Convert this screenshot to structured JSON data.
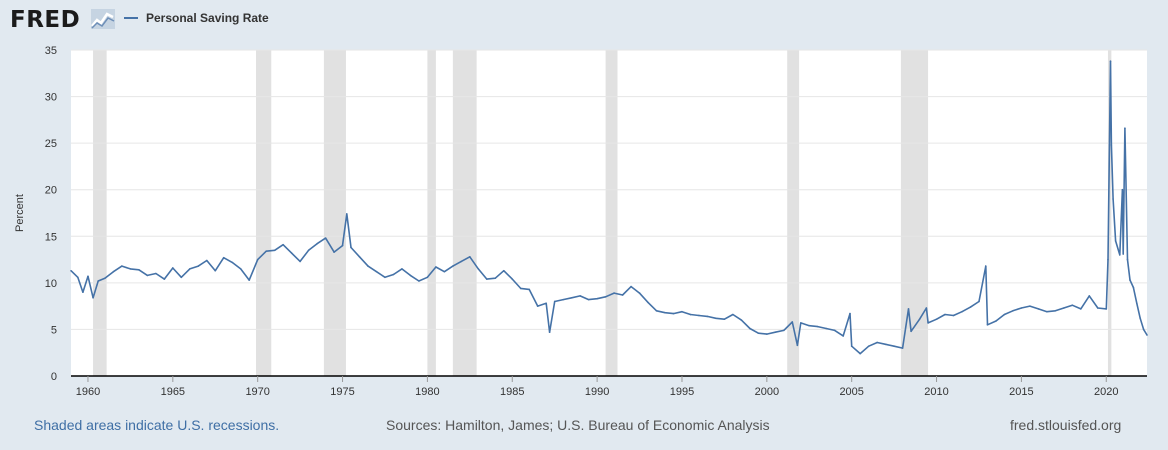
{
  "header": {
    "logo_text": "FRED",
    "logo_icon": "line-chart-icon",
    "legend_label": "Personal Saving Rate"
  },
  "colors": {
    "series": "#4572a7",
    "recession": "#e1e1e1",
    "background": "#e1e9f0",
    "plot": "#ffffff",
    "link": "#3f6fa5"
  },
  "footer": {
    "recession_note": "Shaded areas indicate U.S. recessions.",
    "sources": "Sources: Hamilton, James; U.S. Bureau of Economic Analysis",
    "site": "fred.stlouisfed.org"
  },
  "chart_data": {
    "type": "line",
    "title": "Personal Saving Rate",
    "xlabel": "",
    "ylabel": "Percent",
    "xlim": [
      1959.0,
      2022.4
    ],
    "ylim": [
      0,
      35
    ],
    "grid": true,
    "x_ticks": [
      1960,
      1965,
      1970,
      1975,
      1980,
      1985,
      1990,
      1995,
      2000,
      2005,
      2010,
      2015,
      2020
    ],
    "y_ticks": [
      0,
      5,
      10,
      15,
      20,
      25,
      30,
      35
    ],
    "recessions": [
      [
        1960.3,
        1961.1
      ],
      [
        1969.9,
        1970.8
      ],
      [
        1973.9,
        1975.2
      ],
      [
        1980.0,
        1980.5
      ],
      [
        1981.5,
        1982.9
      ],
      [
        1990.5,
        1991.2
      ],
      [
        2001.2,
        2001.9
      ],
      [
        2007.9,
        2009.5
      ],
      [
        2020.1,
        2020.3
      ]
    ],
    "series": [
      {
        "name": "Personal Saving Rate",
        "points": [
          [
            1959.0,
            11.3
          ],
          [
            1959.4,
            10.6
          ],
          [
            1959.7,
            9.0
          ],
          [
            1960.0,
            10.7
          ],
          [
            1960.3,
            8.4
          ],
          [
            1960.6,
            10.2
          ],
          [
            1961.0,
            10.5
          ],
          [
            1961.5,
            11.2
          ],
          [
            1962.0,
            11.8
          ],
          [
            1962.5,
            11.5
          ],
          [
            1963.0,
            11.4
          ],
          [
            1963.5,
            10.8
          ],
          [
            1964.0,
            11.0
          ],
          [
            1964.5,
            10.4
          ],
          [
            1965.0,
            11.6
          ],
          [
            1965.5,
            10.6
          ],
          [
            1966.0,
            11.5
          ],
          [
            1966.5,
            11.8
          ],
          [
            1967.0,
            12.4
          ],
          [
            1967.5,
            11.3
          ],
          [
            1968.0,
            12.7
          ],
          [
            1968.5,
            12.2
          ],
          [
            1969.0,
            11.5
          ],
          [
            1969.5,
            10.3
          ],
          [
            1970.0,
            12.5
          ],
          [
            1970.5,
            13.4
          ],
          [
            1971.0,
            13.5
          ],
          [
            1971.5,
            14.1
          ],
          [
            1972.0,
            13.2
          ],
          [
            1972.5,
            12.3
          ],
          [
            1973.0,
            13.5
          ],
          [
            1973.5,
            14.2
          ],
          [
            1974.0,
            14.8
          ],
          [
            1974.5,
            13.3
          ],
          [
            1975.0,
            14.0
          ],
          [
            1975.25,
            17.4
          ],
          [
            1975.5,
            13.8
          ],
          [
            1976.0,
            12.8
          ],
          [
            1976.5,
            11.8
          ],
          [
            1977.0,
            11.2
          ],
          [
            1977.5,
            10.6
          ],
          [
            1978.0,
            10.9
          ],
          [
            1978.5,
            11.5
          ],
          [
            1979.0,
            10.8
          ],
          [
            1979.5,
            10.2
          ],
          [
            1980.0,
            10.6
          ],
          [
            1980.5,
            11.7
          ],
          [
            1981.0,
            11.2
          ],
          [
            1981.5,
            11.8
          ],
          [
            1982.0,
            12.3
          ],
          [
            1982.5,
            12.8
          ],
          [
            1983.0,
            11.5
          ],
          [
            1983.5,
            10.4
          ],
          [
            1984.0,
            10.5
          ],
          [
            1984.5,
            11.3
          ],
          [
            1985.0,
            10.4
          ],
          [
            1985.5,
            9.4
          ],
          [
            1986.0,
            9.3
          ],
          [
            1986.5,
            7.5
          ],
          [
            1987.0,
            7.8
          ],
          [
            1987.2,
            4.7
          ],
          [
            1987.5,
            8.0
          ],
          [
            1988.0,
            8.2
          ],
          [
            1988.5,
            8.4
          ],
          [
            1989.0,
            8.6
          ],
          [
            1989.5,
            8.2
          ],
          [
            1990.0,
            8.3
          ],
          [
            1990.5,
            8.5
          ],
          [
            1991.0,
            8.9
          ],
          [
            1991.5,
            8.7
          ],
          [
            1992.0,
            9.6
          ],
          [
            1992.5,
            8.9
          ],
          [
            1993.0,
            7.9
          ],
          [
            1993.5,
            7.0
          ],
          [
            1994.0,
            6.8
          ],
          [
            1994.5,
            6.7
          ],
          [
            1995.0,
            6.9
          ],
          [
            1995.5,
            6.6
          ],
          [
            1996.0,
            6.5
          ],
          [
            1996.5,
            6.4
          ],
          [
            1997.0,
            6.2
          ],
          [
            1997.5,
            6.1
          ],
          [
            1998.0,
            6.6
          ],
          [
            1998.5,
            6.0
          ],
          [
            1999.0,
            5.1
          ],
          [
            1999.5,
            4.6
          ],
          [
            2000.0,
            4.5
          ],
          [
            2000.5,
            4.7
          ],
          [
            2001.0,
            4.9
          ],
          [
            2001.5,
            5.8
          ],
          [
            2001.8,
            3.3
          ],
          [
            2002.0,
            5.7
          ],
          [
            2002.5,
            5.4
          ],
          [
            2003.0,
            5.3
          ],
          [
            2003.5,
            5.1
          ],
          [
            2004.0,
            4.9
          ],
          [
            2004.5,
            4.3
          ],
          [
            2004.9,
            6.7
          ],
          [
            2005.0,
            3.2
          ],
          [
            2005.5,
            2.4
          ],
          [
            2006.0,
            3.2
          ],
          [
            2006.5,
            3.6
          ],
          [
            2007.0,
            3.4
          ],
          [
            2007.5,
            3.2
          ],
          [
            2008.0,
            3.0
          ],
          [
            2008.35,
            7.2
          ],
          [
            2008.5,
            4.8
          ],
          [
            2009.0,
            6.1
          ],
          [
            2009.4,
            7.3
          ],
          [
            2009.5,
            5.7
          ],
          [
            2010.0,
            6.1
          ],
          [
            2010.5,
            6.6
          ],
          [
            2011.0,
            6.5
          ],
          [
            2011.5,
            6.9
          ],
          [
            2012.0,
            7.4
          ],
          [
            2012.5,
            8.0
          ],
          [
            2012.9,
            11.8
          ],
          [
            2013.0,
            5.5
          ],
          [
            2013.5,
            5.9
          ],
          [
            2014.0,
            6.6
          ],
          [
            2014.5,
            7.0
          ],
          [
            2015.0,
            7.3
          ],
          [
            2015.5,
            7.5
          ],
          [
            2016.0,
            7.2
          ],
          [
            2016.5,
            6.9
          ],
          [
            2017.0,
            7.0
          ],
          [
            2017.5,
            7.3
          ],
          [
            2018.0,
            7.6
          ],
          [
            2018.5,
            7.2
          ],
          [
            2019.0,
            8.6
          ],
          [
            2019.5,
            7.3
          ],
          [
            2020.0,
            7.2
          ],
          [
            2020.1,
            12.5
          ],
          [
            2020.25,
            33.8
          ],
          [
            2020.3,
            24.8
          ],
          [
            2020.4,
            19.0
          ],
          [
            2020.55,
            14.5
          ],
          [
            2020.8,
            13.0
          ],
          [
            2020.95,
            20.0
          ],
          [
            2021.0,
            13.1
          ],
          [
            2021.1,
            26.6
          ],
          [
            2021.25,
            12.5
          ],
          [
            2021.4,
            10.3
          ],
          [
            2021.6,
            9.5
          ],
          [
            2021.8,
            7.8
          ],
          [
            2022.0,
            6.2
          ],
          [
            2022.2,
            5.0
          ],
          [
            2022.4,
            4.4
          ]
        ]
      }
    ]
  }
}
